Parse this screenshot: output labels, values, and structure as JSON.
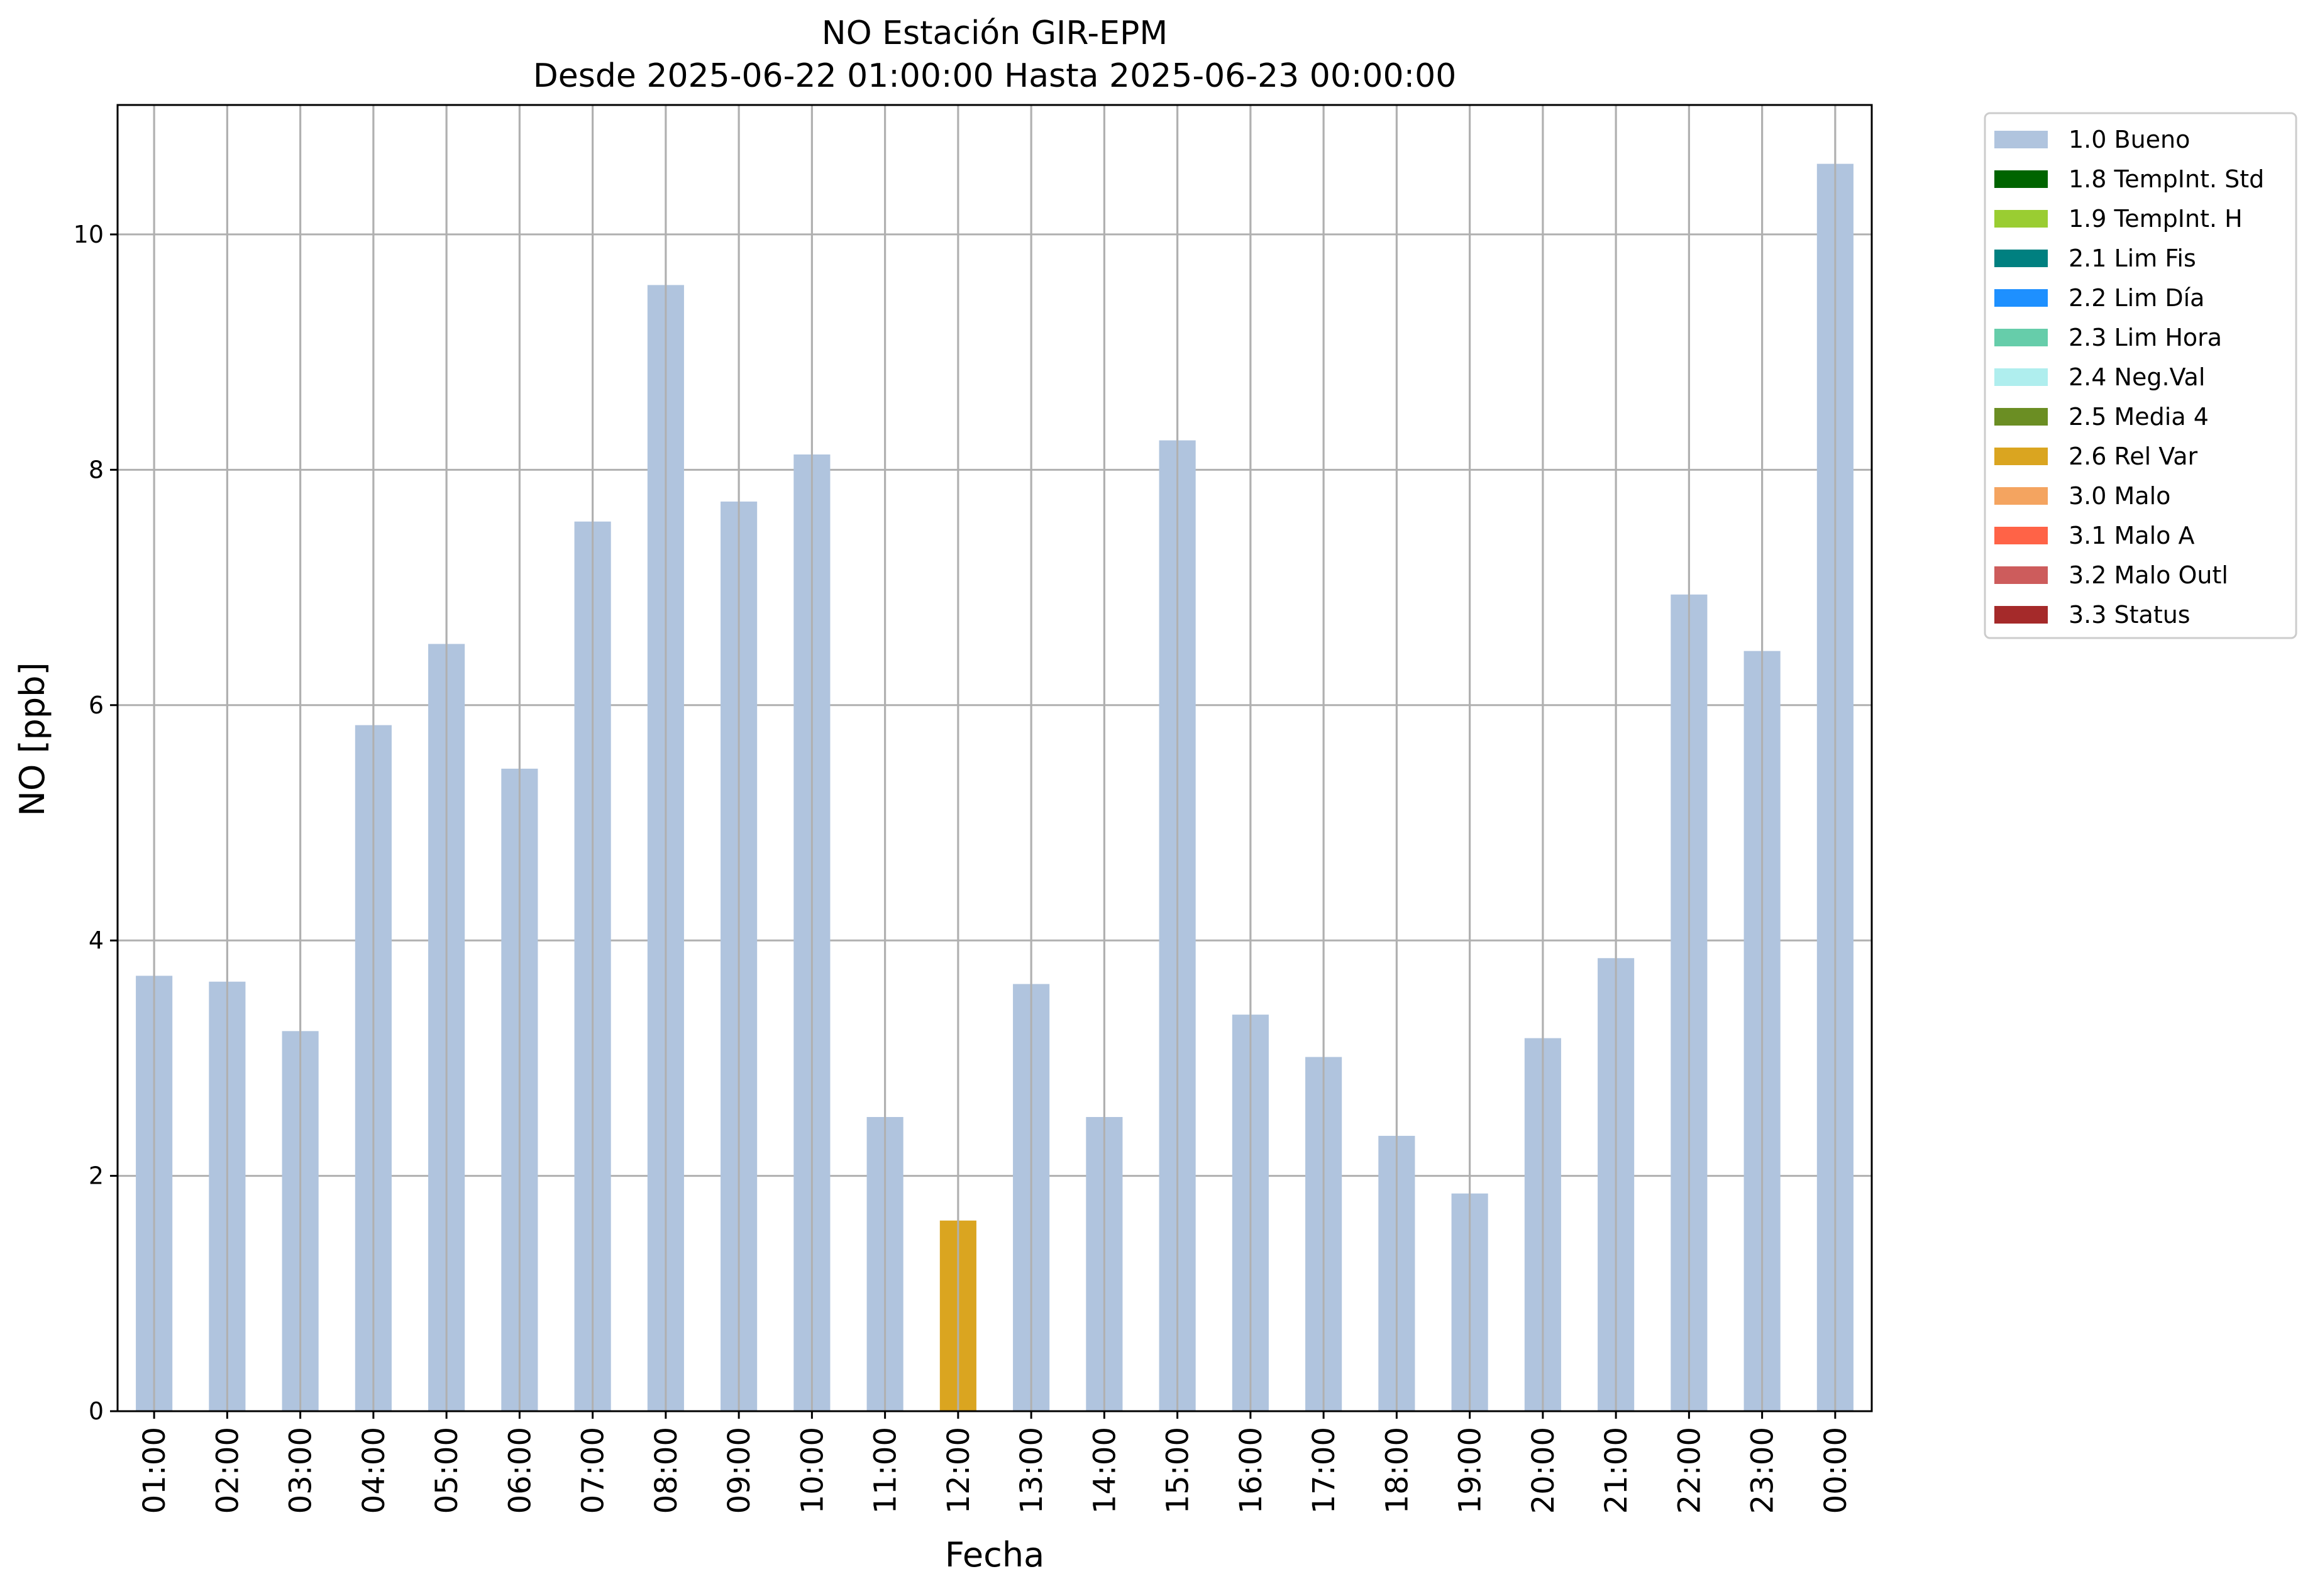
{
  "chart_data": {
    "type": "bar",
    "title": "NO Estación GIR-EPM",
    "subtitle": "Desde 2025-06-22 01:00:00 Hasta 2025-06-23 00:00:00",
    "xlabel": "Fecha",
    "ylabel": "NO [ppb]",
    "ylim": [
      0,
      11.1
    ],
    "yticks": [
      0,
      2,
      4,
      6,
      8,
      10
    ],
    "grid": true,
    "legend_position": "outside right, top",
    "categories": [
      "01:00",
      "02:00",
      "03:00",
      "04:00",
      "05:00",
      "06:00",
      "07:00",
      "08:00",
      "09:00",
      "10:00",
      "11:00",
      "12:00",
      "13:00",
      "14:00",
      "15:00",
      "16:00",
      "17:00",
      "18:00",
      "19:00",
      "20:00",
      "21:00",
      "22:00",
      "23:00",
      "00:00"
    ],
    "values": [
      3.7,
      3.65,
      3.23,
      5.83,
      6.52,
      5.46,
      7.56,
      9.57,
      7.73,
      8.13,
      2.5,
      1.62,
      3.63,
      2.5,
      8.25,
      3.37,
      3.01,
      2.34,
      1.85,
      3.17,
      3.85,
      6.94,
      6.46,
      10.6
    ],
    "bar_flags": [
      "1.0 Bueno",
      "1.0 Bueno",
      "1.0 Bueno",
      "1.0 Bueno",
      "1.0 Bueno",
      "1.0 Bueno",
      "1.0 Bueno",
      "1.0 Bueno",
      "1.0 Bueno",
      "1.0 Bueno",
      "1.0 Bueno",
      "2.6 Rel Var",
      "1.0 Bueno",
      "1.0 Bueno",
      "1.0 Bueno",
      "1.0 Bueno",
      "1.0 Bueno",
      "1.0 Bueno",
      "1.0 Bueno",
      "1.0 Bueno",
      "1.0 Bueno",
      "1.0 Bueno",
      "1.0 Bueno",
      "1.0 Bueno"
    ],
    "legend": [
      {
        "label": "1.0 Bueno",
        "color": "#b0c4de"
      },
      {
        "label": "1.8 TempInt. Std",
        "color": "#006400"
      },
      {
        "label": "1.9 TempInt. H",
        "color": "#9acd32"
      },
      {
        "label": "2.1 Lim Fis",
        "color": "#008080"
      },
      {
        "label": "2.2 Lim Día",
        "color": "#1e90ff"
      },
      {
        "label": "2.3 Lim Hora",
        "color": "#66cdaa"
      },
      {
        "label": "2.4 Neg.Val",
        "color": "#afeeee"
      },
      {
        "label": "2.5 Media 4",
        "color": "#6b8e23"
      },
      {
        "label": "2.6 Rel Var",
        "color": "#daa520"
      },
      {
        "label": "3.0 Malo",
        "color": "#f4a460"
      },
      {
        "label": "3.1 Malo A",
        "color": "#ff6347"
      },
      {
        "label": "3.2 Malo Outl",
        "color": "#cd5c5c"
      },
      {
        "label": "3.3 Status",
        "color": "#a52a2a"
      }
    ]
  }
}
